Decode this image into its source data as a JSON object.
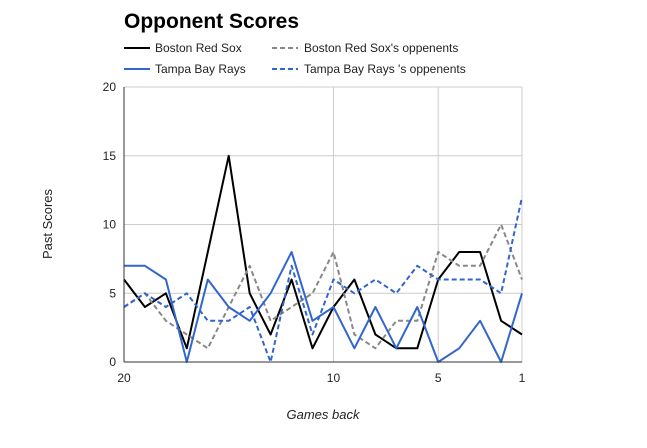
{
  "chart_data": {
    "type": "line",
    "title": "Opponent Scores",
    "xlabel": "Games back",
    "ylabel": "Past Scores",
    "x": [
      20,
      19,
      18,
      17,
      16,
      15,
      14,
      13,
      12,
      11,
      10,
      9,
      8,
      7,
      6,
      5,
      4,
      3,
      2,
      1
    ],
    "xlim": [
      20,
      1
    ],
    "ylim": [
      0,
      20
    ],
    "x_reversed": true,
    "x_ticks": [
      20,
      10,
      5,
      1
    ],
    "x_tick_labels": [
      "20",
      "10",
      "5",
      "1"
    ],
    "y_ticks": [
      0,
      5,
      10,
      15,
      20
    ],
    "y_tick_labels": [
      "0",
      "5",
      "10",
      "15",
      "20"
    ],
    "grid": true,
    "legend": "top",
    "series": [
      {
        "name": "Boston Red Sox",
        "color": "#000000",
        "dash": "solid",
        "values": [
          6,
          4,
          5,
          1,
          8,
          15,
          5,
          2,
          6,
          1,
          4,
          6,
          2,
          1,
          1,
          6,
          8,
          8,
          3,
          2
        ]
      },
      {
        "name": "Boston Red Sox's oppenents",
        "color": "#888888",
        "dash": "dashed",
        "values": [
          4,
          5,
          3,
          2,
          1,
          4,
          7,
          3,
          4,
          5,
          8,
          2,
          1,
          3,
          3,
          8,
          7,
          7,
          10,
          6
        ]
      },
      {
        "name": "Tampa Bay Rays",
        "color": "#3366cc",
        "dash": "solid",
        "values": [
          7,
          7,
          6,
          0,
          6,
          4,
          3,
          5,
          8,
          3,
          4,
          1,
          4,
          1,
          4,
          0,
          1,
          3,
          0,
          5
        ]
      },
      {
        "name": "Tampa Bay Rays 's oppenents",
        "color": "#3366cc",
        "dash": "dashed",
        "values": [
          4,
          5,
          4,
          5,
          3,
          3,
          4,
          0,
          7,
          2,
          6,
          5,
          6,
          5,
          7,
          6,
          6,
          6,
          5,
          12
        ]
      }
    ]
  }
}
